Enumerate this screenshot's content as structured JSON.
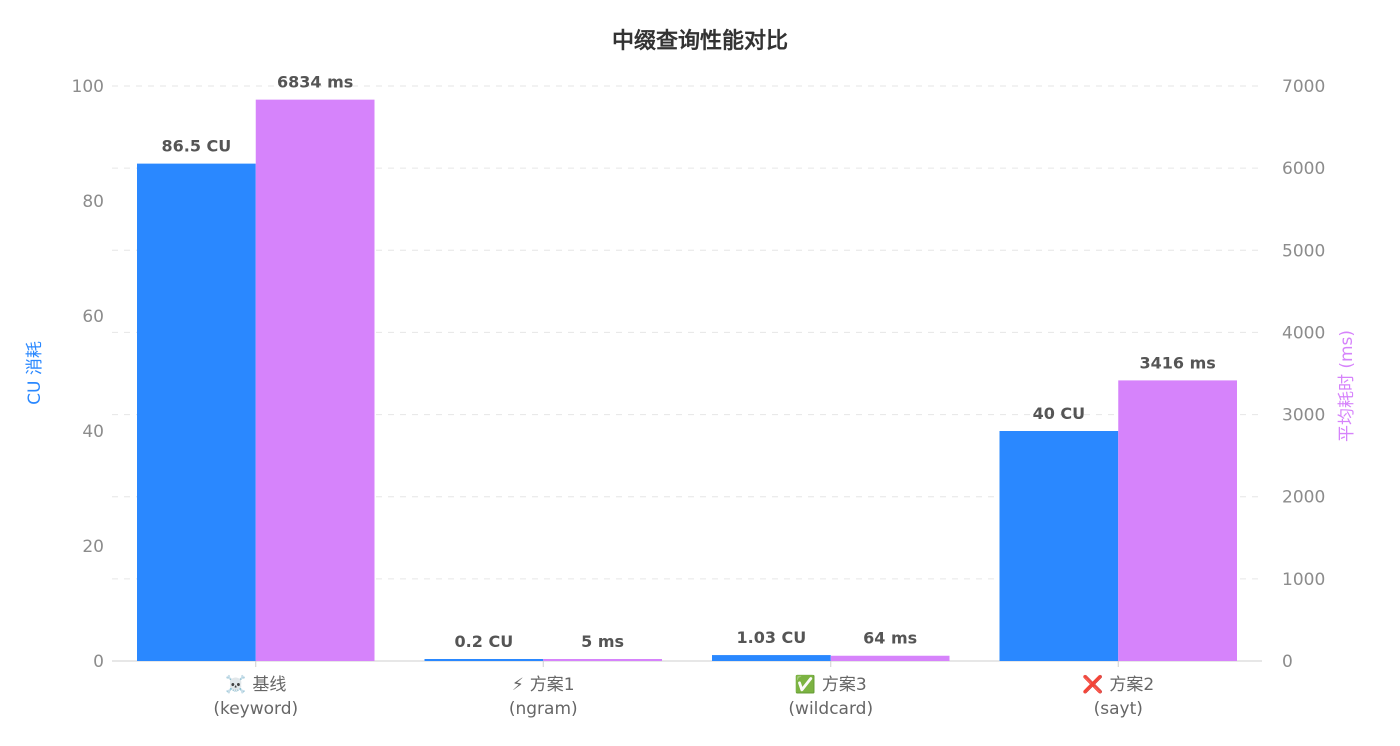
{
  "chart_data": {
    "type": "bar",
    "title": "中缀查询性能对比",
    "categories": [
      {
        "icon": "skull-icon",
        "icon_glyph": "☠️",
        "name": "基线",
        "sub": "(keyword)"
      },
      {
        "icon": "lightning-icon",
        "icon_glyph": "⚡",
        "name": "方案1",
        "sub": "(ngram)"
      },
      {
        "icon": "check-icon",
        "icon_glyph": "✅",
        "name": "方案3",
        "sub": "(wildcard)"
      },
      {
        "icon": "cross-icon",
        "icon_glyph": "❌",
        "name": "方案2",
        "sub": "(sayt)"
      }
    ],
    "series": [
      {
        "name": "CU 消耗",
        "axis": "left",
        "color": "#2a88ff",
        "values": [
          86.5,
          0.2,
          1.03,
          40
        ],
        "labels": [
          "86.5 CU",
          "0.2 CU",
          "1.03 CU",
          "40 CU"
        ]
      },
      {
        "name": "平均耗时 (ms)",
        "axis": "right",
        "color": "#d683fb",
        "values": [
          6834,
          5,
          64,
          3416
        ],
        "labels": [
          "6834 ms",
          "5 ms",
          "64 ms",
          "3416 ms"
        ]
      }
    ],
    "ylabel_left": "CU 消耗",
    "ylabel_right": "平均耗时 (ms)",
    "ylim_left": [
      0,
      100
    ],
    "ylim_right": [
      0,
      7000
    ],
    "yticks_left": [
      "0",
      "20",
      "40",
      "60",
      "80",
      "100"
    ],
    "yticks_right": [
      "0",
      "1000",
      "2000",
      "3000",
      "4000",
      "5000",
      "6000",
      "7000"
    ],
    "grid": true,
    "legend": "none"
  }
}
